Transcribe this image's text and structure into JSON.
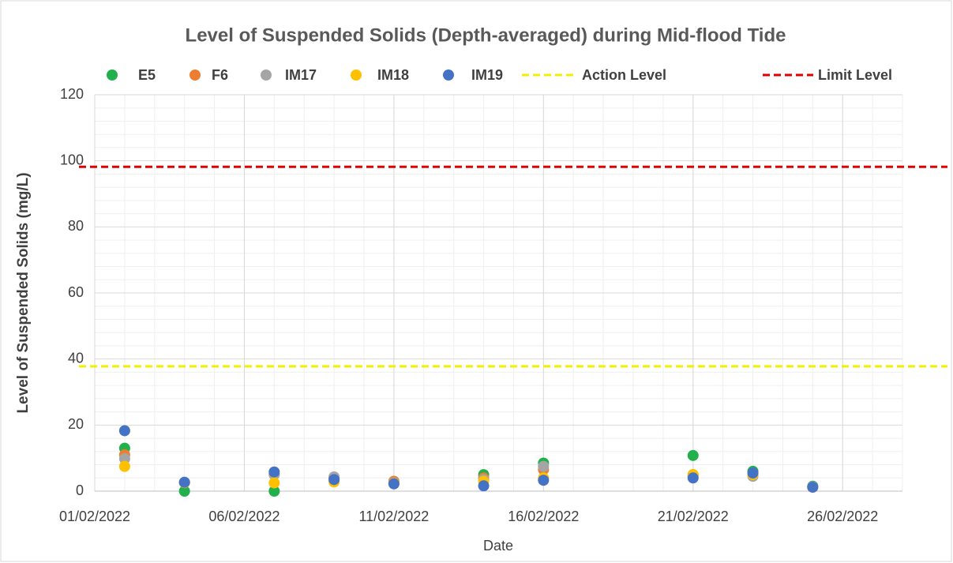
{
  "chart_data": {
    "type": "scatter",
    "title": "Level of Suspended Solids (Depth-averaged) during Mid-flood Tide",
    "x_label": "Date",
    "y_label": "Level of Suspended Solids (mg/L)",
    "x": [
      "2022-02-02",
      "2022-02-04",
      "2022-02-07",
      "2022-02-09",
      "2022-02-11",
      "2022-02-14",
      "2022-02-16",
      "2022-02-21",
      "2022-02-23",
      "2022-02-25"
    ],
    "series": [
      {
        "name": "E5",
        "color": "#21b04b",
        "values": [
          13,
          0,
          0,
          4,
          2.5,
          5,
          8.5,
          10.8,
          6,
          1.5
        ]
      },
      {
        "name": "F6",
        "color": "#ed7d31",
        "values": [
          11,
          2.6,
          5,
          4,
          3,
          4,
          6.5,
          5,
          5,
          1.2
        ]
      },
      {
        "name": "IM17",
        "color": "#a5a5a5",
        "values": [
          9.8,
          2.6,
          5,
          4.3,
          2.5,
          3.5,
          7.5,
          4.5,
          4.5,
          1.3
        ]
      },
      {
        "name": "IM18",
        "color": "#ffc000",
        "values": [
          7.5,
          2.6,
          2.5,
          2.8,
          2.3,
          3,
          4,
          5,
          5,
          1.2
        ]
      },
      {
        "name": "IM19",
        "color": "#4472c4",
        "values": [
          18.3,
          2.7,
          5.8,
          3.5,
          2.2,
          1.6,
          3.3,
          4,
          5.5,
          1.2
        ]
      }
    ],
    "reference_lines": [
      {
        "name": "Action Level",
        "color": "#f0f000",
        "value": 37.8
      },
      {
        "name": "Limit Level",
        "color": "#e00000",
        "value": 98.2
      }
    ],
    "xlim": [
      "2022-02-01",
      "2022-02-28"
    ],
    "xticks": [
      {
        "value": "2022-02-01",
        "label": "01/02/2022"
      },
      {
        "value": "2022-02-06",
        "label": "06/02/2022"
      },
      {
        "value": "2022-02-11",
        "label": "11/02/2022"
      },
      {
        "value": "2022-02-16",
        "label": "16/02/2022"
      },
      {
        "value": "2022-02-21",
        "label": "21/02/2022"
      },
      {
        "value": "2022-02-26",
        "label": "26/02/2022"
      }
    ],
    "ylim": [
      0,
      120
    ],
    "yticks": [
      0,
      20,
      40,
      60,
      80,
      100,
      120
    ],
    "grid": true,
    "minor_grid": true,
    "legend": "top"
  }
}
